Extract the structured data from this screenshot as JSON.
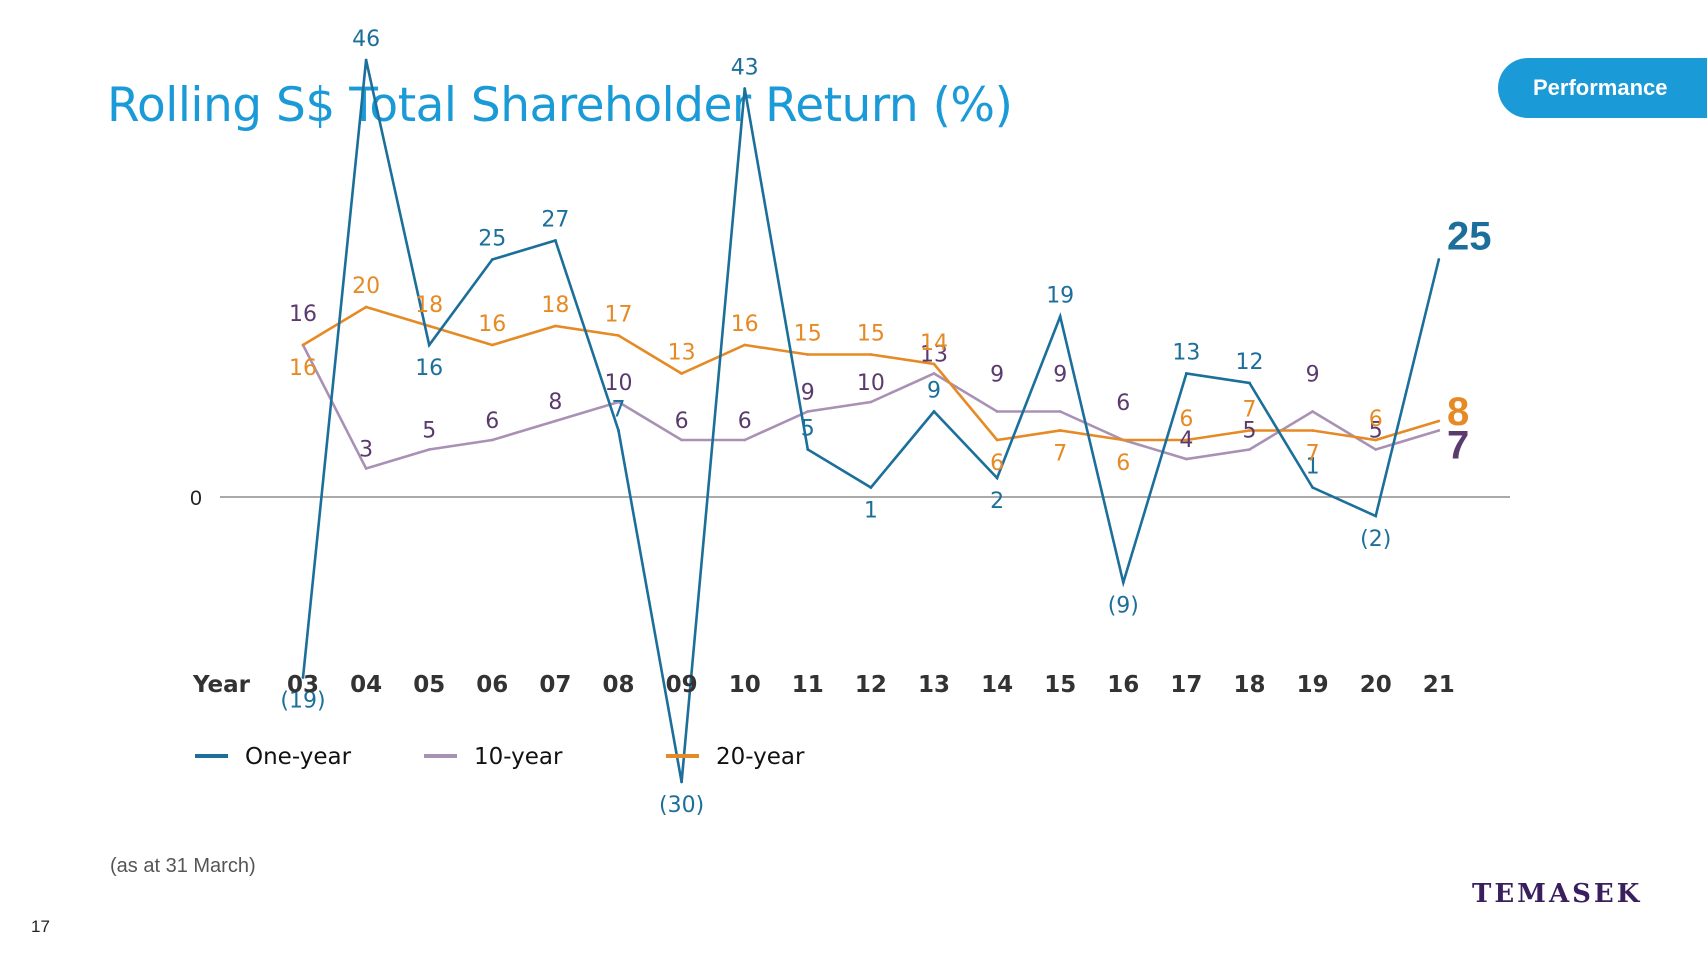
{
  "page": {
    "title": "Rolling S$ Total Shareholder Return (%)",
    "badge": "Performance",
    "footnote": "(as at 31 March)",
    "page_number": "17",
    "logo_text": "TEMASEK"
  },
  "colors": {
    "accent": "#1a9ad6",
    "one_year": "#1b6f9a",
    "ten_year": "#a991b5",
    "twenty_year": "#e58a25",
    "ten_year_label": "#5b3a6e",
    "axis_label": "#333333"
  },
  "chart_data": {
    "type": "line",
    "title": "Rolling S$ Total Shareholder Return (%)",
    "xlabel": "Year",
    "ylabel": "",
    "zero_label": "0",
    "ylim": [
      -30,
      46
    ],
    "grid": false,
    "legend_position": "bottom-left",
    "categories": [
      "03",
      "04",
      "05",
      "06",
      "07",
      "08",
      "09",
      "10",
      "11",
      "12",
      "13",
      "14",
      "15",
      "16",
      "17",
      "18",
      "19",
      "20",
      "21"
    ],
    "series": [
      {
        "name": "One-year",
        "values": [
          -19,
          46,
          16,
          25,
          27,
          7,
          -30,
          43,
          5,
          1,
          9,
          2,
          19,
          -9,
          13,
          12,
          1,
          -2,
          25
        ],
        "labels": [
          "(19)",
          "46",
          "16",
          "25",
          "27",
          "7",
          "(30)",
          "43",
          "5",
          "1",
          "9",
          "2",
          "19",
          "(9)",
          "13",
          "12",
          "1",
          "(2)",
          "25"
        ]
      },
      {
        "name": "10-year",
        "values": [
          16,
          3,
          5,
          6,
          8,
          10,
          6,
          6,
          9,
          10,
          13,
          9,
          9,
          6,
          4,
          5,
          9,
          5,
          7
        ],
        "labels": [
          "16",
          "3",
          "5",
          "6",
          "8",
          "10",
          "6",
          "6",
          "9",
          "10",
          "13",
          "9",
          "9",
          "6",
          "4",
          "5",
          "9",
          "5",
          "7"
        ]
      },
      {
        "name": "20-year",
        "values": [
          16,
          20,
          18,
          16,
          18,
          17,
          13,
          16,
          15,
          15,
          14,
          6,
          7,
          6,
          6,
          7,
          7,
          6,
          8
        ],
        "labels": [
          "16",
          "20",
          "18",
          "16",
          "18",
          "17",
          "13",
          "16",
          "15",
          "15",
          "14",
          "6",
          "7",
          "6",
          "6",
          "7",
          "7",
          "6",
          "8"
        ]
      }
    ]
  }
}
